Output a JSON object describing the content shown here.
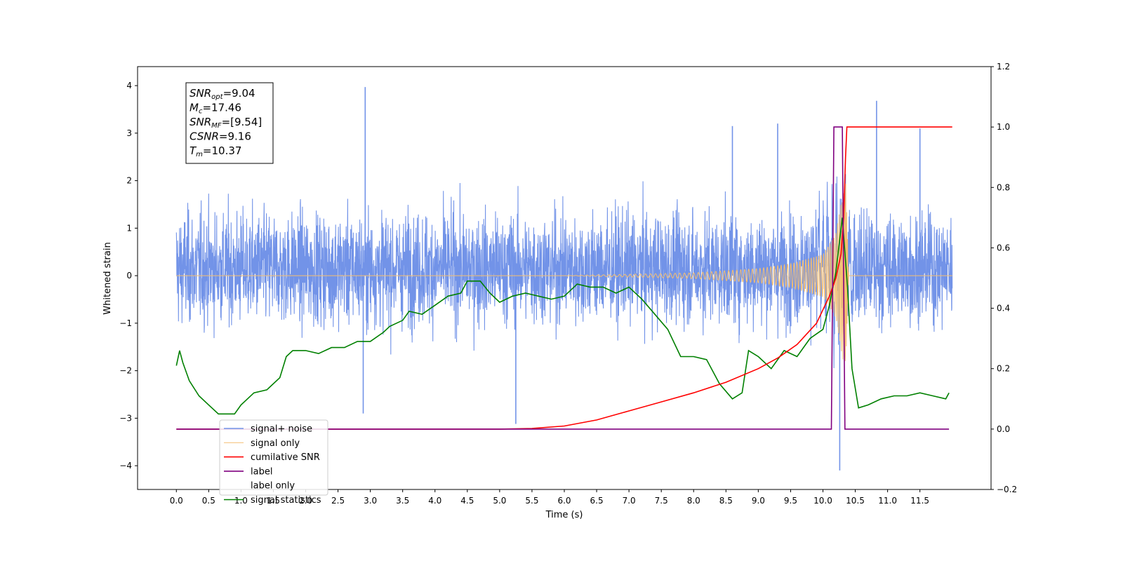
{
  "chart_data": {
    "type": "line",
    "xlabel": "Time (s)",
    "ylabel_left": "Whitened strain",
    "ylabel_right": "",
    "xlim": [
      -0.6,
      12.6
    ],
    "ylim_left": [
      -4.5,
      4.4
    ],
    "ylim_right": [
      -0.2,
      1.2
    ],
    "x_ticks": [
      "0.0",
      "0.5",
      "1.0",
      "1.5",
      "2.0",
      "2.5",
      "3.0",
      "3.5",
      "4.0",
      "4.5",
      "5.0",
      "5.5",
      "6.0",
      "6.5",
      "7.0",
      "7.5",
      "8.0",
      "8.5",
      "9.0",
      "9.5",
      "10.0",
      "10.5",
      "11.0",
      "11.5"
    ],
    "y_ticks_left": [
      "−4",
      "−3",
      "−2",
      "−1",
      "0",
      "1",
      "2",
      "3",
      "4"
    ],
    "y_ticks_right": [
      "−0.2",
      "0.0",
      "0.2",
      "0.4",
      "0.6",
      "0.8",
      "1.0",
      "1.2"
    ],
    "grid": false,
    "legend_position": "lower-left",
    "annotation_lines": [
      {
        "sym": "SNR",
        "sub": "opt",
        "rest": "=9.04"
      },
      {
        "sym": "M",
        "sub": "c",
        "rest": "=17.46"
      },
      {
        "sym": "SNR",
        "sub": "MF",
        "rest": "=[9.54]"
      },
      {
        "sym": "CSNR",
        "sub": "",
        "rest": "=9.16"
      },
      {
        "sym": "T",
        "sub": "m",
        "rest": "=10.37"
      }
    ],
    "series": [
      {
        "name": "signal+ noise",
        "axis": "left",
        "color": "#7293E8",
        "note": "dense noise band roughly between -2.2 and 2.4 with spikes to about 4.0 and -4.1; chirp signal buried near t=10.3",
        "spikes": [
          [
            2.92,
            3.97
          ],
          [
            10.83,
            3.68
          ],
          [
            8.6,
            3.15
          ],
          [
            10.26,
            -4.1
          ],
          [
            5.25,
            -3.12
          ],
          [
            2.89,
            -2.9
          ],
          [
            9.3,
            3.2
          ],
          [
            11.5,
            3.1
          ]
        ]
      },
      {
        "name": "signal only",
        "axis": "left",
        "color": "#F5BE70",
        "note": "chirp with amplitude growing from 0 near t=6 to about 2.1 at t=10.33, zero after",
        "envelope": [
          [
            0.0,
            0.0
          ],
          [
            6.0,
            0.0
          ],
          [
            7.0,
            0.03
          ],
          [
            8.0,
            0.06
          ],
          [
            9.0,
            0.15
          ],
          [
            9.5,
            0.25
          ],
          [
            10.0,
            0.45
          ],
          [
            10.2,
            0.9
          ],
          [
            10.3,
            1.7
          ],
          [
            10.35,
            2.1
          ],
          [
            10.4,
            0.0
          ],
          [
            12.0,
            0.0
          ]
        ]
      },
      {
        "name": "cumilative SNR",
        "axis": "right",
        "color": "#FF0000",
        "points": [
          [
            0.0,
            0.0
          ],
          [
            5.0,
            0.0
          ],
          [
            5.5,
            0.002
          ],
          [
            6.0,
            0.01
          ],
          [
            6.5,
            0.03
          ],
          [
            7.0,
            0.06
          ],
          [
            7.5,
            0.09
          ],
          [
            8.0,
            0.12
          ],
          [
            8.5,
            0.155
          ],
          [
            9.0,
            0.2
          ],
          [
            9.3,
            0.235
          ],
          [
            9.6,
            0.28
          ],
          [
            9.9,
            0.35
          ],
          [
            10.1,
            0.44
          ],
          [
            10.2,
            0.5
          ],
          [
            10.28,
            0.58
          ],
          [
            10.32,
            0.7
          ],
          [
            10.35,
            0.9
          ],
          [
            10.37,
            1.0
          ],
          [
            12.0,
            1.0
          ]
        ]
      },
      {
        "name": "label",
        "axis": "right",
        "color": "#800080",
        "points": [
          [
            0.0,
            0.0
          ],
          [
            10.13,
            0.0
          ],
          [
            10.17,
            1.0
          ],
          [
            10.3,
            1.0
          ],
          [
            10.34,
            0.0
          ],
          [
            11.95,
            0.0
          ]
        ]
      },
      {
        "name": "label only",
        "axis": "right",
        "color": "#800080",
        "hidden": true,
        "points": []
      },
      {
        "name": "signal statistics",
        "axis": "right",
        "color": "#008000",
        "points": [
          [
            0.0,
            0.21
          ],
          [
            0.05,
            0.26
          ],
          [
            0.1,
            0.22
          ],
          [
            0.2,
            0.16
          ],
          [
            0.35,
            0.11
          ],
          [
            0.5,
            0.08
          ],
          [
            0.65,
            0.05
          ],
          [
            0.8,
            0.05
          ],
          [
            0.9,
            0.05
          ],
          [
            1.0,
            0.08
          ],
          [
            1.1,
            0.1
          ],
          [
            1.2,
            0.12
          ],
          [
            1.4,
            0.13
          ],
          [
            1.6,
            0.17
          ],
          [
            1.7,
            0.24
          ],
          [
            1.8,
            0.26
          ],
          [
            2.0,
            0.26
          ],
          [
            2.2,
            0.25
          ],
          [
            2.4,
            0.27
          ],
          [
            2.6,
            0.27
          ],
          [
            2.8,
            0.29
          ],
          [
            3.0,
            0.29
          ],
          [
            3.2,
            0.32
          ],
          [
            3.3,
            0.34
          ],
          [
            3.5,
            0.36
          ],
          [
            3.6,
            0.39
          ],
          [
            3.8,
            0.38
          ],
          [
            4.0,
            0.41
          ],
          [
            4.2,
            0.44
          ],
          [
            4.4,
            0.45
          ],
          [
            4.5,
            0.49
          ],
          [
            4.7,
            0.49
          ],
          [
            4.85,
            0.45
          ],
          [
            5.0,
            0.42
          ],
          [
            5.2,
            0.44
          ],
          [
            5.4,
            0.45
          ],
          [
            5.6,
            0.44
          ],
          [
            5.8,
            0.43
          ],
          [
            6.0,
            0.44
          ],
          [
            6.2,
            0.48
          ],
          [
            6.4,
            0.47
          ],
          [
            6.6,
            0.47
          ],
          [
            6.8,
            0.45
          ],
          [
            7.0,
            0.47
          ],
          [
            7.2,
            0.43
          ],
          [
            7.4,
            0.38
          ],
          [
            7.6,
            0.33
          ],
          [
            7.8,
            0.24
          ],
          [
            8.0,
            0.24
          ],
          [
            8.2,
            0.23
          ],
          [
            8.4,
            0.15
          ],
          [
            8.6,
            0.1
          ],
          [
            8.75,
            0.12
          ],
          [
            8.85,
            0.26
          ],
          [
            9.0,
            0.24
          ],
          [
            9.2,
            0.2
          ],
          [
            9.4,
            0.26
          ],
          [
            9.6,
            0.24
          ],
          [
            9.8,
            0.3
          ],
          [
            10.0,
            0.33
          ],
          [
            10.1,
            0.41
          ],
          [
            10.2,
            0.52
          ],
          [
            10.3,
            0.7
          ],
          [
            10.38,
            0.47
          ],
          [
            10.45,
            0.2
          ],
          [
            10.55,
            0.07
          ],
          [
            10.7,
            0.08
          ],
          [
            10.9,
            0.1
          ],
          [
            11.1,
            0.11
          ],
          [
            11.3,
            0.11
          ],
          [
            11.5,
            0.12
          ],
          [
            11.7,
            0.11
          ],
          [
            11.9,
            0.1
          ],
          [
            11.95,
            0.12
          ]
        ]
      }
    ]
  }
}
